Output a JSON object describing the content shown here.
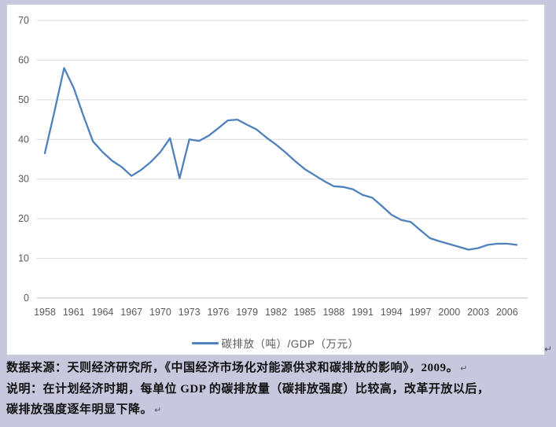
{
  "chart_data": {
    "type": "line",
    "series_name": "碳排放（吨）/GDP（万元）",
    "title": "",
    "xlabel": "",
    "ylabel": "",
    "ylim": [
      0,
      70
    ],
    "y_ticks": [
      0,
      10,
      20,
      30,
      40,
      50,
      60,
      70
    ],
    "x_tick_labels": [
      "1958",
      "1961",
      "1964",
      "1967",
      "1970",
      "1973",
      "1976",
      "1979",
      "1982",
      "1985",
      "1988",
      "1991",
      "1994",
      "1997",
      "2000",
      "2003",
      "2006"
    ],
    "grid": true,
    "legend_position": "bottom",
    "x": [
      1958,
      1959,
      1960,
      1961,
      1962,
      1963,
      1964,
      1965,
      1966,
      1967,
      1968,
      1969,
      1970,
      1971,
      1972,
      1973,
      1974,
      1975,
      1976,
      1977,
      1978,
      1979,
      1980,
      1981,
      1982,
      1983,
      1984,
      1985,
      1986,
      1987,
      1988,
      1989,
      1990,
      1991,
      1992,
      1993,
      1994,
      1995,
      1996,
      1997,
      1998,
      1999,
      2000,
      2001,
      2002,
      2003,
      2004,
      2005,
      2006,
      2007
    ],
    "values": [
      36.5,
      47,
      58,
      53,
      46,
      39.5,
      36.8,
      34.6,
      33,
      30.8,
      32.3,
      34.3,
      36.8,
      40.3,
      30.2,
      40,
      39.6,
      40.9,
      42.8,
      44.8,
      45,
      43.7,
      42.5,
      40.5,
      38.7,
      36.7,
      34.5,
      32.5,
      31,
      29.5,
      28.2,
      28,
      27.4,
      26,
      25.3,
      23.2,
      21,
      19.7,
      19.2,
      17.1,
      15.1,
      14.3,
      13.6,
      12.9,
      12.2,
      12.6,
      13.4,
      13.7,
      13.7,
      13.4
    ]
  },
  "colors": {
    "page_bg": "#c7c7de",
    "panel_bg": "#ffffff",
    "line": "#4f81bd",
    "grid": "#d9d9d9",
    "axis": "#bfbfbf",
    "tick_text": "#595959"
  },
  "footer": {
    "source_line": "数据来源：天则经济研究所，《中国经济市场化对能源供求和碳排放的影响》，2009。",
    "note_line1": "说明：在计划经济时期，每单位 GDP 的碳排放量（碳排放强度）比较高，改革开放以后，",
    "note_line2": "碳排放强度逐年明显下降。",
    "return_mark": "↵"
  }
}
